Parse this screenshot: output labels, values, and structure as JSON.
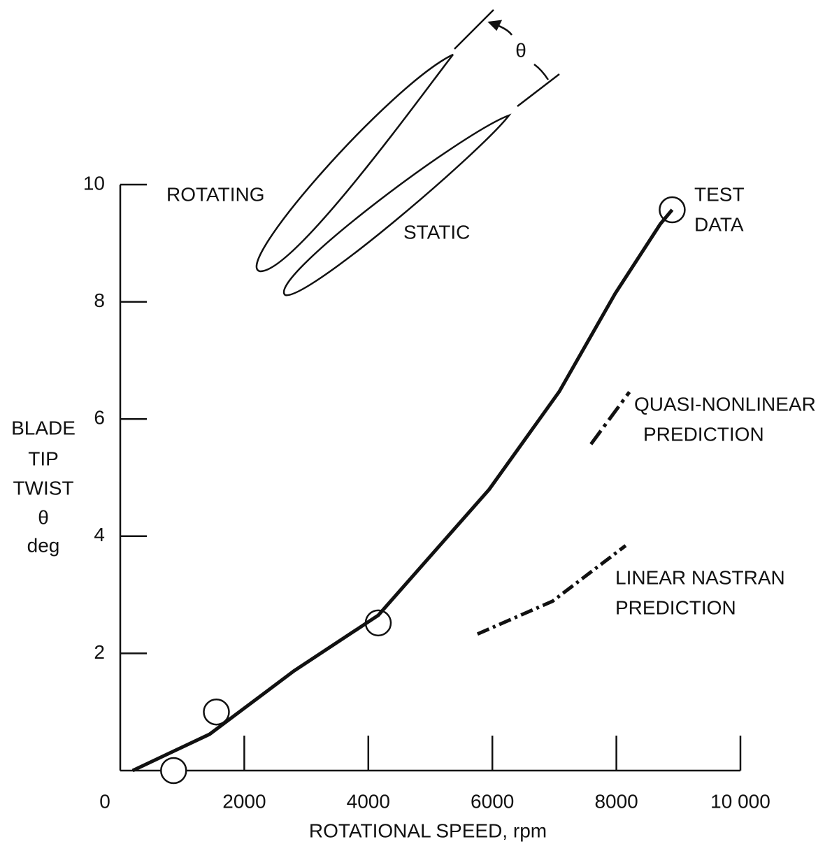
{
  "chart_data": {
    "type": "line",
    "x_label": "ROTATIONAL SPEED, rpm",
    "y_label_lines": [
      "BLADE",
      "TIP",
      "TWIST",
      "θ",
      "deg"
    ],
    "diagram_label": "θ",
    "xlim": [
      0,
      10000
    ],
    "ylim": [
      0,
      10
    ],
    "xticks": [
      0,
      2000,
      4000,
      6000,
      8000,
      {
        "value": 10000,
        "label": "10 000"
      }
    ],
    "yticks": [
      2,
      4,
      6,
      8,
      10
    ],
    "series": [
      {
        "style": "markers",
        "color": "#111111",
        "x": [
          860,
          1550,
          4160,
          8900
        ],
        "values": [
          0,
          1.0,
          2.52,
          9.57
        ]
      },
      {
        "style": "solid",
        "color": "#111111",
        "x": [
          200,
          1440,
          2800,
          4160,
          5950,
          7080,
          7980,
          8710,
          8900
        ],
        "values": [
          0,
          0.62,
          1.7,
          2.65,
          4.8,
          6.47,
          8.14,
          9.33,
          9.57
        ]
      },
      {
        "style": "quasi",
        "color": "#111111",
        "x": [
          7590,
          8210
        ],
        "values": [
          5.57,
          6.46
        ]
      },
      {
        "style": "dashdot",
        "color": "#111111",
        "x": [
          5760,
          6970,
          8150
        ],
        "values": [
          2.33,
          2.89,
          3.84
        ]
      }
    ],
    "annotations": [
      {
        "lines": [
          "ROTATING"
        ]
      },
      {
        "lines": [
          "STATIC"
        ]
      },
      {
        "lines": [
          "TEST",
          "DATA"
        ]
      },
      {
        "lines": [
          "QUASI-NONLINEAR",
          "PREDICTION"
        ]
      },
      {
        "lines": [
          "LINEAR NASTRAN",
          "PREDICTION"
        ]
      }
    ]
  }
}
